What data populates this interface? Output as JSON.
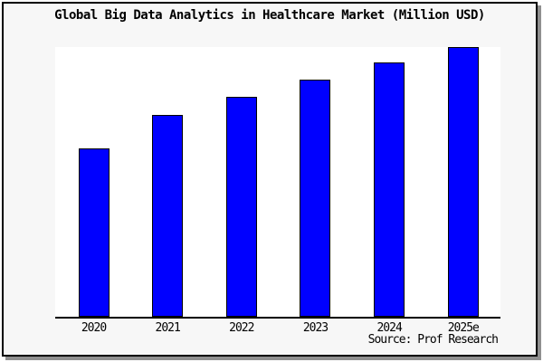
{
  "header": {
    "title": "Global Big Data Analytics in Healthcare Market (Million USD)"
  },
  "footer": {
    "source": "Source: Prof Research"
  },
  "colors": {
    "bar_fill": "#0000ff",
    "bar_border": "#000000",
    "plot_background": "#ffffff",
    "card_background": "#f7f7f7",
    "frame_border": "#000000",
    "frame_shadow": "#8f8f8f"
  },
  "chart_data": {
    "type": "bar",
    "title": "Global Big Data Analytics in Healthcare Market (Million USD)",
    "categories": [
      "2020",
      "2021",
      "2022",
      "2023",
      "2024",
      "2025e"
    ],
    "values_pct_of_max": [
      62.5,
      75.0,
      81.7,
      88.0,
      94.2,
      100.0
    ],
    "value_axis_labels_visible": false,
    "data_labels_visible": false,
    "xlabel": "",
    "ylabel": "",
    "grid": false,
    "legend_position": "none",
    "source_note": "Source: Prof Research",
    "bar_color": "#0000ff"
  }
}
